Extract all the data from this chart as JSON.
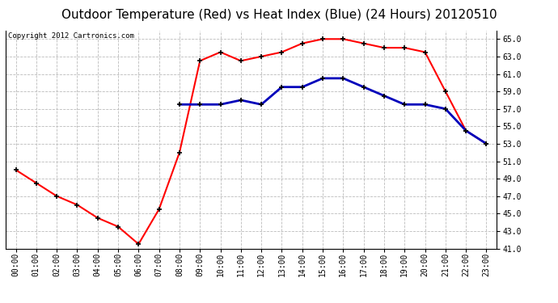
{
  "title": "Outdoor Temperature (Red) vs Heat Index (Blue) (24 Hours) 20120510",
  "copyright": "Copyright 2012 Cartronics.com",
  "x_labels": [
    "00:00",
    "01:00",
    "02:00",
    "03:00",
    "04:00",
    "05:00",
    "06:00",
    "07:00",
    "08:00",
    "09:00",
    "10:00",
    "11:00",
    "12:00",
    "13:00",
    "14:00",
    "15:00",
    "16:00",
    "17:00",
    "18:00",
    "19:00",
    "20:00",
    "21:00",
    "22:00",
    "23:00"
  ],
  "temp_red": [
    50.0,
    48.5,
    47.0,
    46.0,
    44.5,
    43.5,
    41.5,
    45.5,
    52.0,
    62.5,
    63.5,
    62.5,
    63.0,
    63.5,
    64.5,
    65.0,
    65.0,
    64.5,
    64.0,
    64.0,
    63.5,
    59.0,
    54.5,
    53.0
  ],
  "heat_blue": [
    null,
    null,
    null,
    null,
    null,
    null,
    null,
    null,
    57.5,
    57.5,
    57.5,
    58.0,
    57.5,
    59.5,
    59.5,
    60.5,
    60.5,
    59.5,
    58.5,
    57.5,
    57.5,
    57.0,
    54.5,
    53.0
  ],
  "ylim_min": 41.0,
  "ylim_max": 66.0,
  "yticks": [
    41.0,
    43.0,
    45.0,
    47.0,
    49.0,
    51.0,
    53.0,
    55.0,
    57.0,
    59.0,
    61.0,
    63.0,
    65.0
  ],
  "bg_color": "#ffffff",
  "plot_bg": "#ffffff",
  "grid_color": "#bbbbbb",
  "red_color": "#ff0000",
  "blue_color": "#0000bb",
  "title_fontsize": 11,
  "copyright_fontsize": 6.5,
  "tick_fontsize": 7
}
